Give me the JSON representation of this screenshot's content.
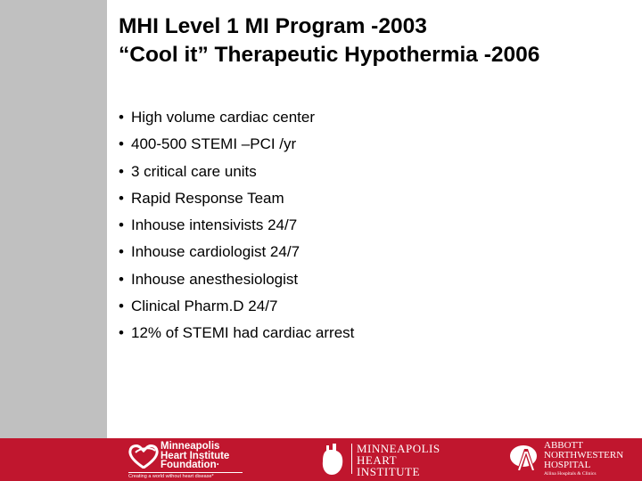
{
  "title": {
    "line1": "MHI Level 1 MI Program -2003",
    "line2": "“Cool it” Therapeutic Hypothermia -2006"
  },
  "bullet_glyph": "•",
  "bullets": [
    "High volume cardiac center",
    "400-500 STEMI –PCI /yr",
    "3 critical care units",
    "Rapid Response Team",
    "Inhouse intensivists 24/7",
    "Inhouse cardiologist 24/7",
    "Inhouse anesthesiologist",
    "Clinical Pharm.D 24/7",
    "12% of STEMI had cardiac arrest"
  ],
  "footer": {
    "color": "#c0162e",
    "logos": {
      "mhif": {
        "line1": "Minneapolis",
        "line2": "Heart Institute",
        "line3": "Foundation·",
        "tagline": "Creating a world without heart disease*"
      },
      "mhi": {
        "line1": "Minneapolis",
        "line2": "Heart",
        "line3": "Institute"
      },
      "anw": {
        "line1": "ABBOTT",
        "line2": "NORTHWESTERN",
        "line3": "HOSPITAL",
        "sub": "Allina Hospitals & Clinics"
      }
    }
  },
  "sidebar_color": "#c0c0c0"
}
